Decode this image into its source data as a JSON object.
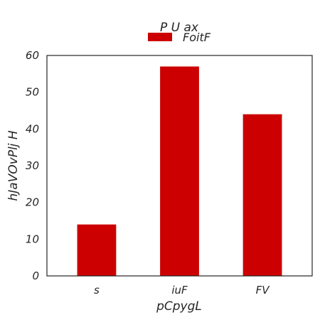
{
  "chart_data": {
    "type": "bar",
    "title": "P U ax",
    "xlabel": "pCpygL",
    "ylabel": "hJaVOvPlj H",
    "categories": [
      "s",
      "iuF",
      "FV"
    ],
    "series": [
      {
        "name": "FoitF",
        "values": [
          14,
          57,
          44
        ],
        "color": "#cc0000"
      }
    ],
    "ylim": [
      0,
      60
    ],
    "yticks": [
      0,
      10,
      20,
      30,
      40,
      50,
      60
    ],
    "grid": false,
    "legend_position": "top-center"
  }
}
